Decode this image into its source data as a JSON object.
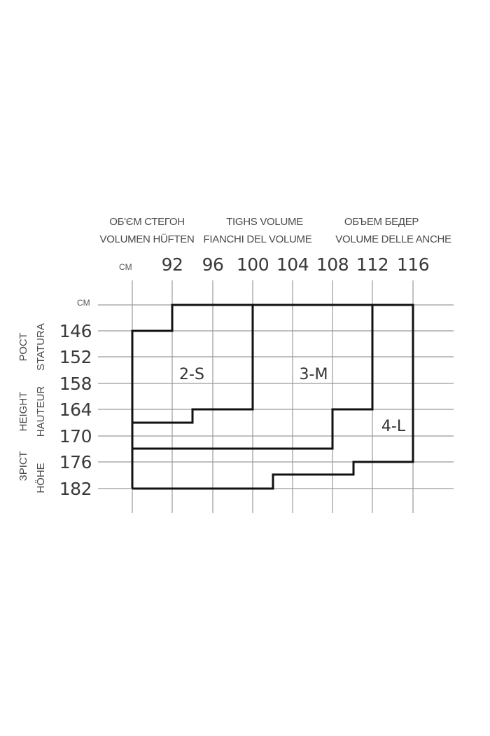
{
  "header": {
    "groups": [
      {
        "line1": "ОБ'ЄМ СТЕГОН",
        "line2": "VOLUMEN HÜFTEN"
      },
      {
        "line1": "TIGHS VOLUME",
        "line2": "FIANCHI DEL VOLUME"
      },
      {
        "line1": "ОБЪЕМ БЕДЕР",
        "line2": "VOLUME DELLE ANCHE"
      }
    ],
    "unit": "CM"
  },
  "side_labels": [
    {
      "line1": "РОСТ",
      "line2": "STATURA"
    },
    {
      "line1": "HEIGHT",
      "line2": "HAUTEUR"
    },
    {
      "line1": "ЗРІСТ",
      "line2": "HÖHE"
    }
  ],
  "y_unit": "CM",
  "hip_ticks": [
    "92",
    "96",
    "100",
    "104",
    "108",
    "112",
    "116"
  ],
  "height_ticks": [
    "146",
    "152",
    "158",
    "164",
    "170",
    "176",
    "182"
  ],
  "sizes": [
    {
      "label": "2-S"
    },
    {
      "label": "3-M"
    },
    {
      "label": "4-L"
    }
  ],
  "colors": {
    "grid": "#9a9a9a",
    "outline": "#111111",
    "text": "#444444"
  }
}
